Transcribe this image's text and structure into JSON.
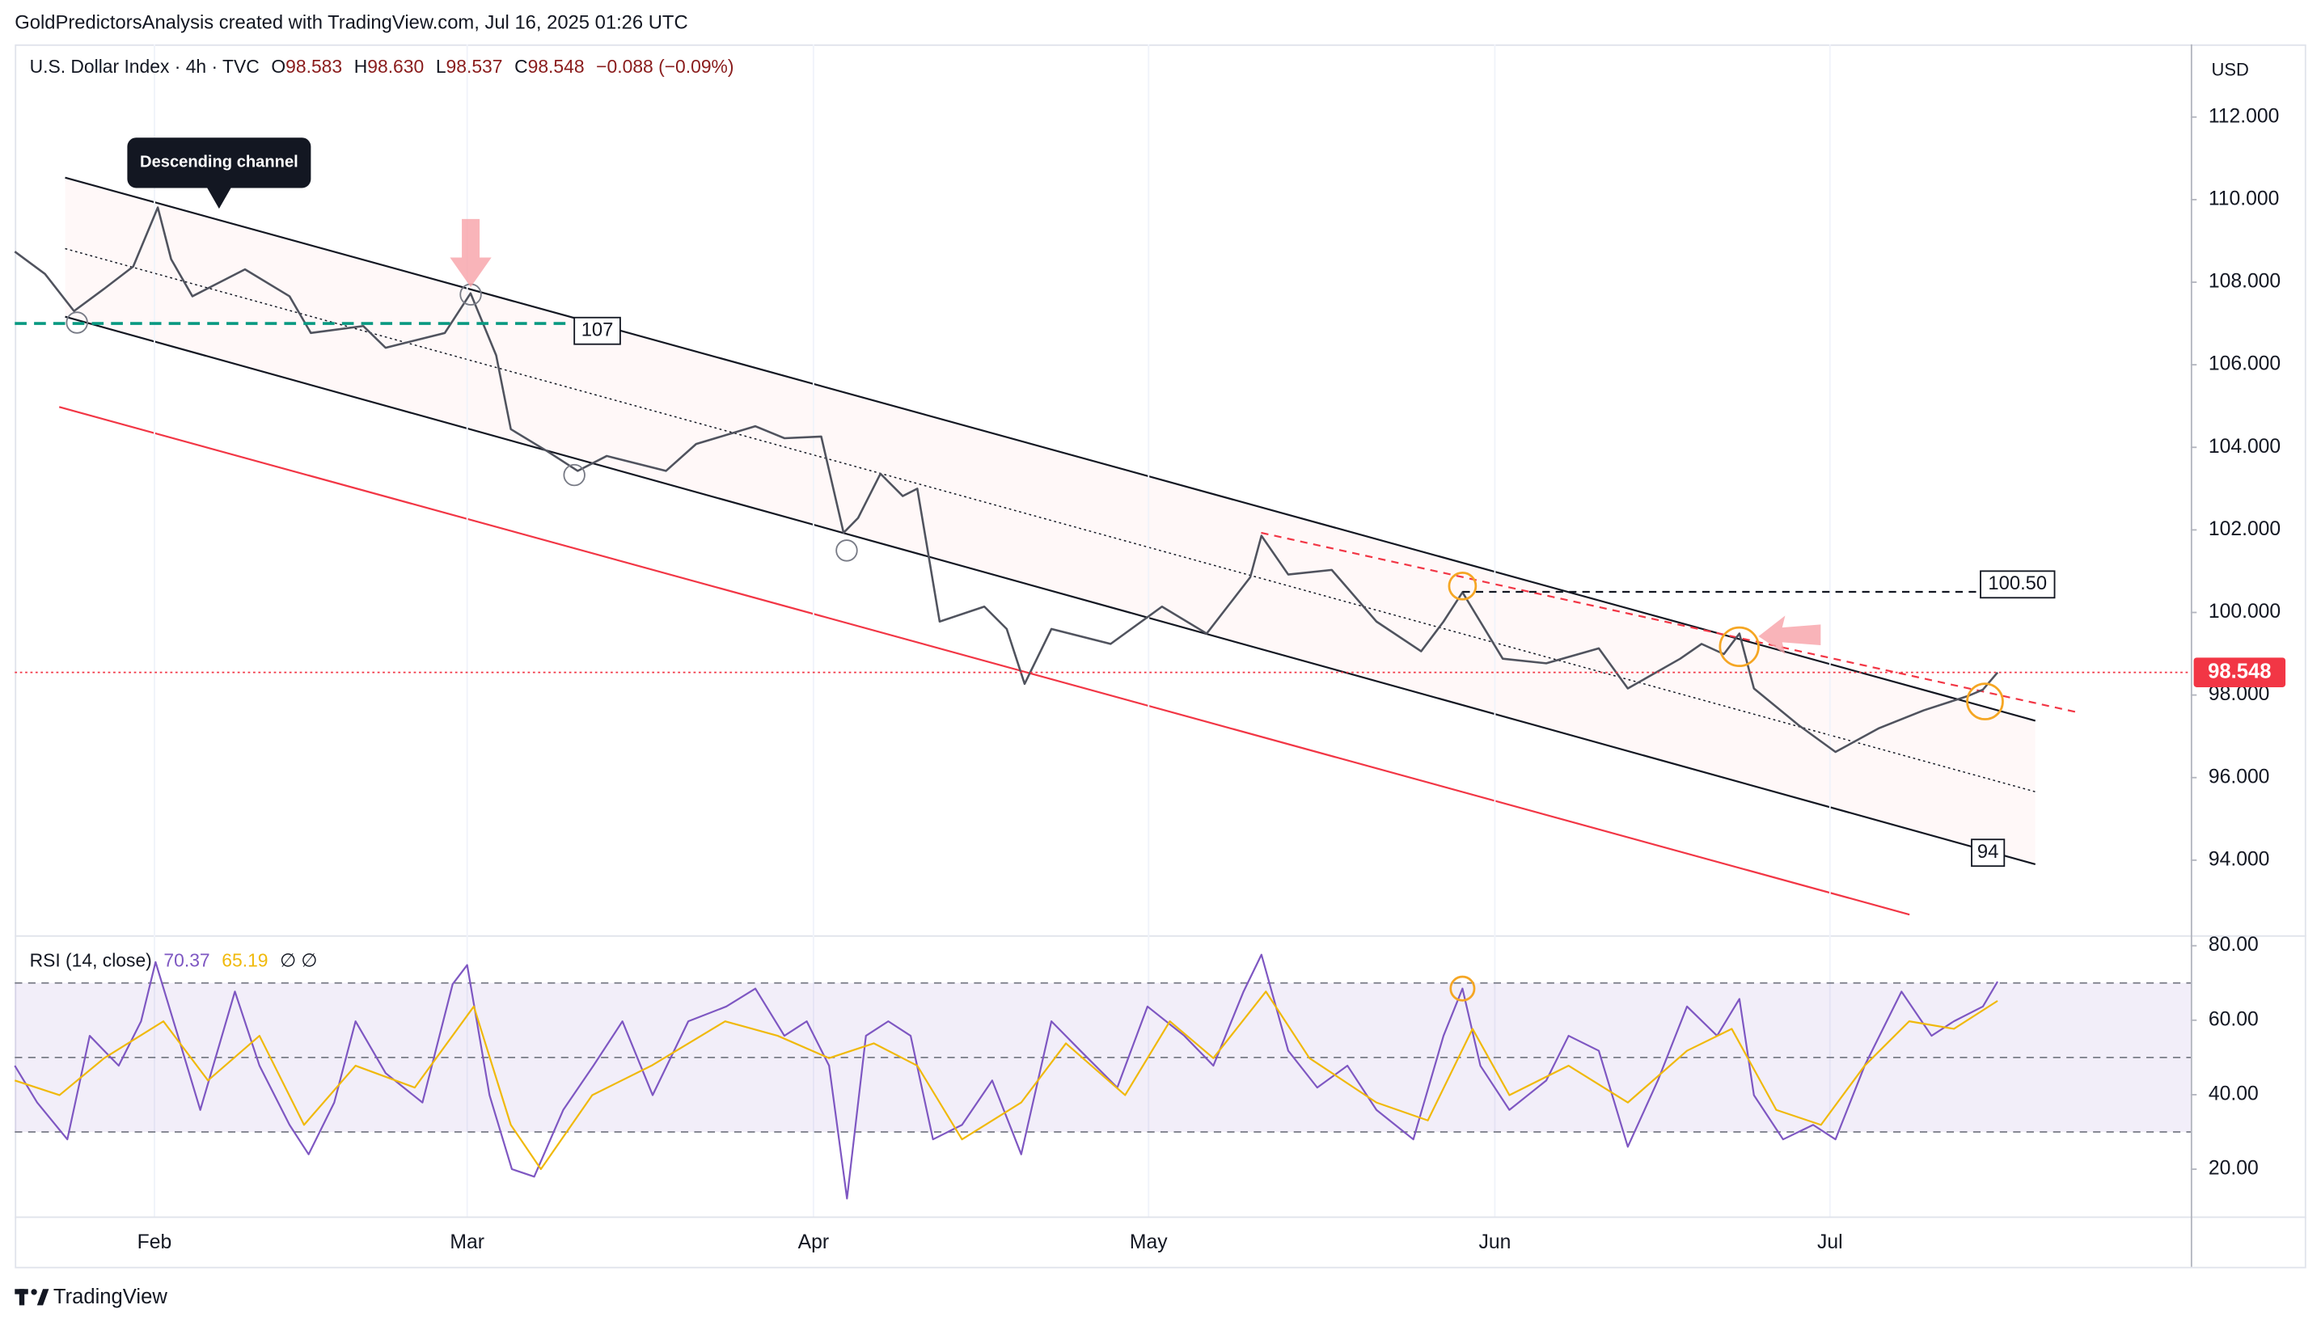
{
  "header": {
    "credit": "GoldPredictorsAnalysis created with TradingView.com, Jul 16, 2025 01:26 UTC",
    "symbol": "U.S. Dollar Index · 4h · TVC",
    "ohlc": [
      {
        "label": "O",
        "value": "98.583"
      },
      {
        "label": "H",
        "value": "98.630"
      },
      {
        "label": "L",
        "value": "98.537"
      },
      {
        "label": "C",
        "value": "98.548"
      }
    ],
    "change": "−0.088 (−0.09%)"
  },
  "footer_brand": "TradingView",
  "chart_data": {
    "type": "line",
    "xlim": [
      19.5,
      214.3
    ],
    "xticks": [
      {
        "value": 32,
        "label": "Feb"
      },
      {
        "value": 60,
        "label": "Mar"
      },
      {
        "value": 91,
        "label": "Apr"
      },
      {
        "value": 121,
        "label": "May"
      },
      {
        "value": 152,
        "label": "Jun"
      },
      {
        "value": 182,
        "label": "Jul"
      }
    ],
    "ylim": [
      92.18,
      113.76
    ],
    "yticks": [
      {
        "value": 112,
        "label": "112.000"
      },
      {
        "value": 110,
        "label": "110.000"
      },
      {
        "value": 108,
        "label": "108.000"
      },
      {
        "value": 106,
        "label": "106.000"
      },
      {
        "value": 104,
        "label": "104.000"
      },
      {
        "value": 102,
        "label": "102.000"
      },
      {
        "value": 100,
        "label": "100.000"
      },
      {
        "value": 98,
        "label": "98.000"
      },
      {
        "value": 96,
        "label": "96.000"
      },
      {
        "value": 94,
        "label": "94.000"
      }
    ],
    "y_unit": "USD",
    "price": {
      "color": "#50535e",
      "x": [
        19.5,
        22.2,
        24.8,
        27.5,
        30.1,
        32.3,
        33.5,
        35.4,
        40.1,
        44.1,
        46.0,
        50.7,
        52.7,
        58.0,
        60.3,
        62.6,
        63.9,
        67.2,
        69.9,
        72.5,
        77.8,
        80.5,
        85.8,
        88.4,
        91.7,
        93.7,
        95.0,
        97.0,
        99.0,
        100.3,
        102.3,
        106.3,
        108.3,
        109.9,
        112.3,
        117.6,
        122.2,
        126.2,
        130.1,
        131.1,
        133.5,
        137.4,
        141.4,
        145.4,
        147.4,
        149.1,
        152.7,
        156.6,
        161.3,
        163.9,
        168.6,
        170.5,
        172.5,
        173.9,
        175.2,
        179.2,
        182.5,
        186.4,
        190.4,
        194.4,
        195.7,
        197.0
      ],
      "close": [
        108.74,
        108.2,
        107.3,
        107.84,
        108.38,
        109.81,
        108.56,
        107.66,
        108.31,
        107.66,
        106.77,
        106.94,
        106.41,
        106.77,
        107.73,
        106.23,
        104.44,
        103.9,
        103.43,
        103.79,
        103.43,
        104.08,
        104.51,
        104.22,
        104.26,
        101.93,
        102.29,
        103.36,
        102.82,
        103.0,
        99.78,
        100.14,
        99.6,
        98.27,
        99.6,
        99.24,
        100.14,
        99.49,
        100.85,
        101.86,
        100.92,
        101.03,
        99.78,
        99.06,
        99.78,
        100.49,
        98.88,
        98.77,
        99.13,
        98.16,
        98.88,
        99.24,
        98.99,
        99.49,
        98.16,
        97.27,
        96.62,
        97.2,
        97.63,
        97.98,
        98.13,
        98.548
      ]
    },
    "current_price": {
      "value": 98.548,
      "label": "98.548",
      "color": "#f23645"
    },
    "levels": [
      {
        "value": 107,
        "label": "107",
        "color": "#089981"
      },
      {
        "value": 100.5,
        "label": "100.50",
        "color": "#131722"
      },
      {
        "value": 94,
        "label": "94",
        "color": "#131722"
      }
    ],
    "annotation": "Descending channel",
    "rsi": {
      "title": "RSI (14, close)",
      "ylim": [
        7.3,
        82.8
      ],
      "yticks": [
        {
          "value": 80,
          "label": "80.00"
        },
        {
          "value": 60,
          "label": "60.00"
        },
        {
          "value": 40,
          "label": "40.00"
        },
        {
          "value": 20,
          "label": "20.00"
        }
      ],
      "levels": [
        70,
        50,
        30
      ],
      "readouts": [
        {
          "value": 70.37,
          "color": "#7e57c2"
        },
        {
          "value": 65.19,
          "color": "#f0b90b"
        }
      ],
      "placeholders": "∅ ∅",
      "series": [
        {
          "color": "#7e57c2",
          "x": [
            19.5,
            21.5,
            24.2,
            26.2,
            28.8,
            30.8,
            32.1,
            34.1,
            36.1,
            39.2,
            41.4,
            44.1,
            45.8,
            48.1,
            50.0,
            52.7,
            56.0,
            58.7,
            60.0,
            62.0,
            64.0,
            66.0,
            68.6,
            71.3,
            73.9,
            76.6,
            79.8,
            83.2,
            85.8,
            88.4,
            90.4,
            92.4,
            94.0,
            95.7,
            97.7,
            99.7,
            101.7,
            104.3,
            107.0,
            109.6,
            112.3,
            114.9,
            118.2,
            120.9,
            124.2,
            126.8,
            129.5,
            131.1,
            133.5,
            136.1,
            138.8,
            141.4,
            144.7,
            147.4,
            149.1,
            150.7,
            153.3,
            156.6,
            158.6,
            161.3,
            163.9,
            166.6,
            169.2,
            171.9,
            173.9,
            175.2,
            177.8,
            180.5,
            182.5,
            185.1,
            188.4,
            191.1,
            193.1,
            195.7,
            197.0
          ],
          "values": [
            47.8,
            37.9,
            28.0,
            55.8,
            47.8,
            59.7,
            75.6,
            55.8,
            35.9,
            67.7,
            47.8,
            31.9,
            24.0,
            37.9,
            59.7,
            45.8,
            37.9,
            69.7,
            74.8,
            39.9,
            20.0,
            18.0,
            35.9,
            47.8,
            59.7,
            39.9,
            59.7,
            63.7,
            68.5,
            55.8,
            59.7,
            47.8,
            12.1,
            55.8,
            59.7,
            55.8,
            28.0,
            31.9,
            43.8,
            24.0,
            59.7,
            51.8,
            41.9,
            63.7,
            55.8,
            47.8,
            67.7,
            77.6,
            51.8,
            41.9,
            47.8,
            35.9,
            28.0,
            55.8,
            68.5,
            47.8,
            35.9,
            43.8,
            55.8,
            51.8,
            26.0,
            43.8,
            63.7,
            55.8,
            65.7,
            39.9,
            28.0,
            31.9,
            28.0,
            47.8,
            67.7,
            55.8,
            59.7,
            63.7,
            70.37
          ]
        },
        {
          "color": "#f0b90b",
          "x": [
            19.5,
            23.5,
            27.5,
            32.8,
            36.8,
            41.4,
            45.4,
            50.0,
            55.3,
            60.6,
            63.9,
            66.6,
            71.2,
            76.5,
            83.1,
            87.8,
            92.4,
            96.4,
            100.3,
            104.3,
            109.6,
            113.6,
            118.9,
            122.9,
            126.8,
            131.5,
            135.4,
            141.4,
            146.0,
            150.0,
            153.3,
            158.6,
            163.9,
            169.2,
            173.2,
            177.2,
            181.2,
            185.1,
            189.1,
            193.1,
            197.0
          ],
          "values": [
            43.8,
            39.9,
            49.8,
            59.7,
            43.8,
            55.8,
            31.9,
            47.8,
            41.9,
            63.7,
            31.9,
            20.0,
            39.9,
            47.8,
            59.7,
            55.8,
            49.8,
            53.8,
            47.8,
            28.0,
            37.9,
            53.8,
            39.9,
            59.7,
            49.8,
            67.7,
            49.8,
            37.9,
            33.1,
            57.7,
            39.9,
            47.8,
            37.9,
            51.8,
            57.7,
            35.9,
            31.9,
            47.8,
            59.7,
            57.7,
            65.19
          ]
        }
      ]
    }
  }
}
